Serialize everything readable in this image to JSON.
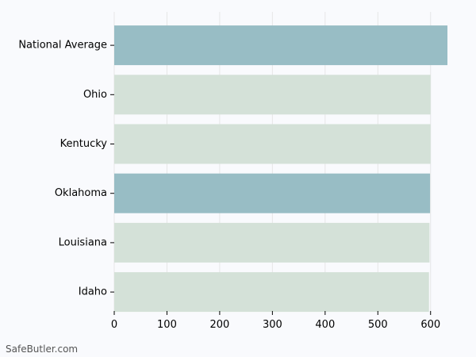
{
  "chart_data": {
    "type": "bar",
    "orientation": "horizontal",
    "categories": [
      "National Average",
      "Ohio",
      "Kentucky",
      "Oklahoma",
      "Louisiana",
      "Idaho"
    ],
    "values": [
      632,
      600,
      600,
      599,
      598,
      597
    ],
    "bar_colors": [
      "#98bdc5",
      "#d4e1d8",
      "#d4e1d8",
      "#98bdc5",
      "#d4e1d8",
      "#d4e1d8"
    ],
    "xlim": [
      0,
      632
    ],
    "xticks": [
      0,
      100,
      200,
      300,
      400,
      500,
      600
    ],
    "grid": true,
    "title": "",
    "xlabel": "",
    "ylabel": ""
  },
  "watermark": "SafeButler.com",
  "colors": {
    "background": "#f9fafd",
    "grid": "#e6e6e6",
    "axis": "#000000"
  }
}
